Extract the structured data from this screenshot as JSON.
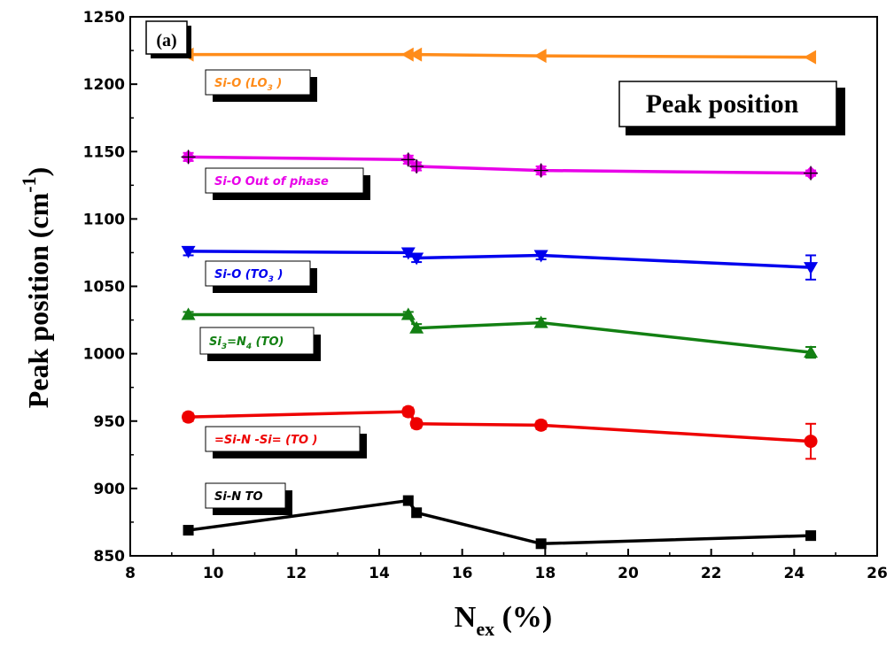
{
  "chart_data": {
    "type": "line",
    "panel_label": "(a)",
    "title_box": "Peak position",
    "xlabel": {
      "main": "N",
      "sub": "ex",
      "tail": " (%)"
    },
    "ylabel": {
      "main": "Peak position (cm",
      "sup": "-1",
      "tail": ")"
    },
    "xlim": [
      8,
      26
    ],
    "ylim": [
      850,
      1250
    ],
    "xticks": [
      8,
      10,
      12,
      14,
      16,
      18,
      20,
      22,
      24,
      26
    ],
    "yticks": [
      850,
      900,
      950,
      1000,
      1050,
      1100,
      1150,
      1200,
      1250
    ],
    "grid": false,
    "series": [
      {
        "key": "lo3",
        "label_parts": [
          {
            "t": "Si-O (LO"
          },
          {
            "t": "3",
            "sub": true
          },
          {
            "t": " )"
          }
        ],
        "color": "#ff8c1a",
        "marker": "left-triangle",
        "x": [
          9.4,
          14.7,
          14.9,
          17.9,
          24.4
        ],
        "y": [
          1222,
          1222,
          1222,
          1221,
          1220
        ],
        "err": [
          0,
          0,
          0,
          0,
          0
        ]
      },
      {
        "key": "outofphase",
        "label_parts": [
          {
            "t": "Si-O Out of phase"
          }
        ],
        "color": "#e800e8",
        "marker": "diamond",
        "x": [
          9.4,
          14.7,
          14.9,
          17.9,
          24.4
        ],
        "y": [
          1146,
          1144,
          1139,
          1136,
          1134
        ],
        "err": [
          3,
          3,
          3,
          3,
          2
        ]
      },
      {
        "key": "to3",
        "label_parts": [
          {
            "t": "Si-O (TO"
          },
          {
            "t": "3",
            "sub": true
          },
          {
            "t": " )"
          }
        ],
        "color": "#0000ee",
        "marker": "down-triangle",
        "x": [
          9.4,
          14.7,
          14.9,
          17.9,
          24.4
        ],
        "y": [
          1076,
          1075,
          1071,
          1073,
          1064
        ],
        "err": [
          3,
          3,
          3,
          3,
          9
        ]
      },
      {
        "key": "si3n4",
        "label_parts": [
          {
            "t": "Si"
          },
          {
            "t": "3",
            "sub": true
          },
          {
            "t": "=N"
          },
          {
            "t": "4",
            "sub": true
          },
          {
            "t": " (TO)"
          }
        ],
        "color": "#138013",
        "marker": "up-triangle",
        "x": [
          9.4,
          14.7,
          14.9,
          17.9,
          24.4
        ],
        "y": [
          1029,
          1029,
          1019,
          1023,
          1001
        ],
        "err": [
          2,
          2,
          3,
          3,
          4
        ]
      },
      {
        "key": "sinsi",
        "label_parts": [
          {
            "t": "=Si-N -Si= (TO )"
          }
        ],
        "color": "#ee0000",
        "marker": "circle",
        "x": [
          9.4,
          14.7,
          14.9,
          17.9,
          24.4
        ],
        "y": [
          953,
          957,
          948,
          947,
          935
        ],
        "err": [
          3,
          3,
          3,
          3,
          13
        ]
      },
      {
        "key": "sinto",
        "label_parts": [
          {
            "t": "Si-N TO"
          }
        ],
        "color": "#000000",
        "marker": "square",
        "x": [
          9.4,
          14.7,
          14.9,
          17.9,
          24.4
        ],
        "y": [
          869,
          891,
          882,
          859,
          865
        ],
        "err": [
          0,
          0,
          0,
          0,
          0
        ]
      }
    ]
  }
}
